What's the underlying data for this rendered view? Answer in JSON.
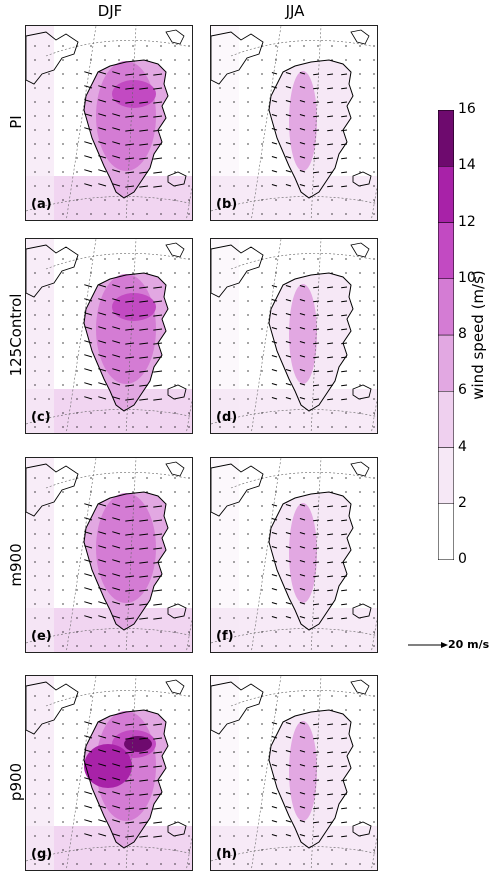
{
  "columns": [
    "DJF",
    "JJA"
  ],
  "rows": [
    "PI",
    "125Control",
    "m900",
    "p900"
  ],
  "panel_letters": [
    "(a)",
    "(b)",
    "(c)",
    "(d)",
    "(e)",
    "(f)",
    "(g)",
    "(h)"
  ],
  "colorbar": {
    "label": "wind speed (m/s)",
    "ticks": [
      "0",
      "2",
      "4",
      "6",
      "8",
      "10",
      "12",
      "14",
      "16"
    ],
    "colors": [
      "#ffffff",
      "#f6e8f6",
      "#efd0ef",
      "#e2a8e2",
      "#d47cd4",
      "#c24ac2",
      "#a822a8",
      "#6e0a6e"
    ]
  },
  "reference_vector": {
    "label": "20 m/s"
  },
  "chart_data": {
    "type": "map",
    "variable": "wind speed",
    "units": "m/s",
    "levels": [
      0,
      2,
      4,
      6,
      8,
      10,
      12,
      14,
      16
    ],
    "panels": [
      {
        "id": "(a)",
        "experiment": "PI",
        "season": "DJF",
        "peak_level": 12
      },
      {
        "id": "(b)",
        "experiment": "PI",
        "season": "JJA",
        "peak_level": 6
      },
      {
        "id": "(c)",
        "experiment": "125Control",
        "season": "DJF",
        "peak_level": 12
      },
      {
        "id": "(d)",
        "experiment": "125Control",
        "season": "JJA",
        "peak_level": 6
      },
      {
        "id": "(e)",
        "experiment": "m900",
        "season": "DJF",
        "peak_level": 8
      },
      {
        "id": "(f)",
        "experiment": "m900",
        "season": "JJA",
        "peak_level": 6
      },
      {
        "id": "(g)",
        "experiment": "p900",
        "season": "DJF",
        "peak_level": 14
      },
      {
        "id": "(h)",
        "experiment": "p900",
        "season": "JJA",
        "peak_level": 6
      }
    ]
  }
}
